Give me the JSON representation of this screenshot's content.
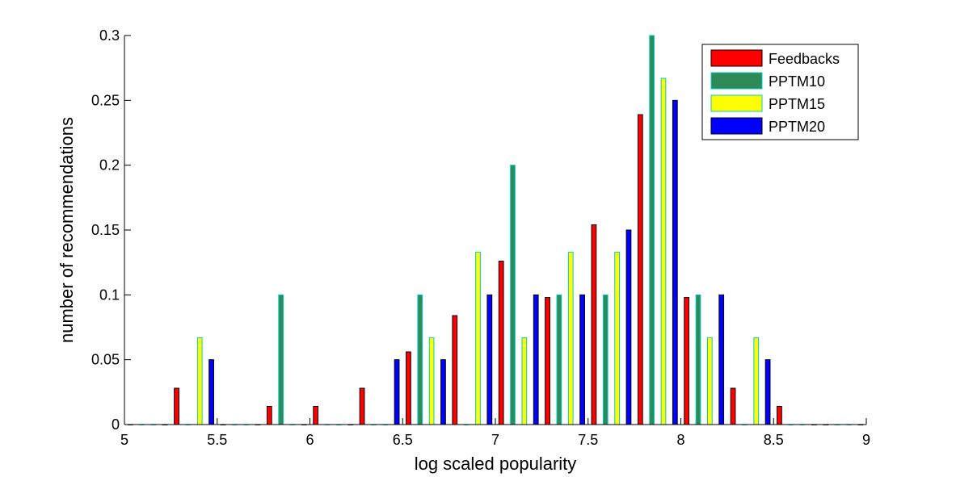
{
  "chart_data": {
    "type": "bar",
    "xlabel": "log scaled popularity",
    "ylabel": "number of recommendations",
    "xlim": [
      5,
      9
    ],
    "ylim": [
      0,
      0.3
    ],
    "xticks": [
      "5",
      "5.5",
      "6",
      "6.5",
      "7",
      "7.5",
      "8",
      "8.5",
      "9"
    ],
    "yticks": [
      "0",
      "0.05",
      "0.1",
      "0.15",
      "0.2",
      "0.25",
      "0.3"
    ],
    "legend_position": "top-right",
    "x": [
      5.125,
      5.375,
      5.625,
      5.875,
      6.125,
      6.375,
      6.625,
      6.875,
      7.125,
      7.375,
      7.625,
      7.875,
      8.125,
      8.375,
      8.625,
      8.875
    ],
    "series": [
      {
        "name": "Feedbacks",
        "color": "#ff0000",
        "edge": "#000000",
        "values": [
          0,
          0.028,
          0,
          0.014,
          0.014,
          0.028,
          0.056,
          0.084,
          0.126,
          0.098,
          0.154,
          0.239,
          0.098,
          0.028,
          0.014,
          0
        ]
      },
      {
        "name": "PPTM10",
        "color": "#2e8b57",
        "edge": "#00cccc",
        "values": [
          0,
          0,
          0,
          0.1,
          0,
          0,
          0.1,
          0,
          0.2,
          0.1,
          0.1,
          0.3,
          0.1,
          0,
          0,
          0
        ]
      },
      {
        "name": "PPTM15",
        "color": "#ffff00",
        "edge": "#00cccc",
        "values": [
          0,
          0.067,
          0,
          0,
          0,
          0,
          0.067,
          0.133,
          0.067,
          0.133,
          0.133,
          0.267,
          0.067,
          0.067,
          0,
          0
        ]
      },
      {
        "name": "PPTM20",
        "color": "#0000ff",
        "edge": "#000000",
        "values": [
          0,
          0.05,
          0,
          0,
          0,
          0.05,
          0.05,
          0.1,
          0.1,
          0.1,
          0.15,
          0.25,
          0.1,
          0.05,
          0,
          0
        ]
      }
    ]
  }
}
